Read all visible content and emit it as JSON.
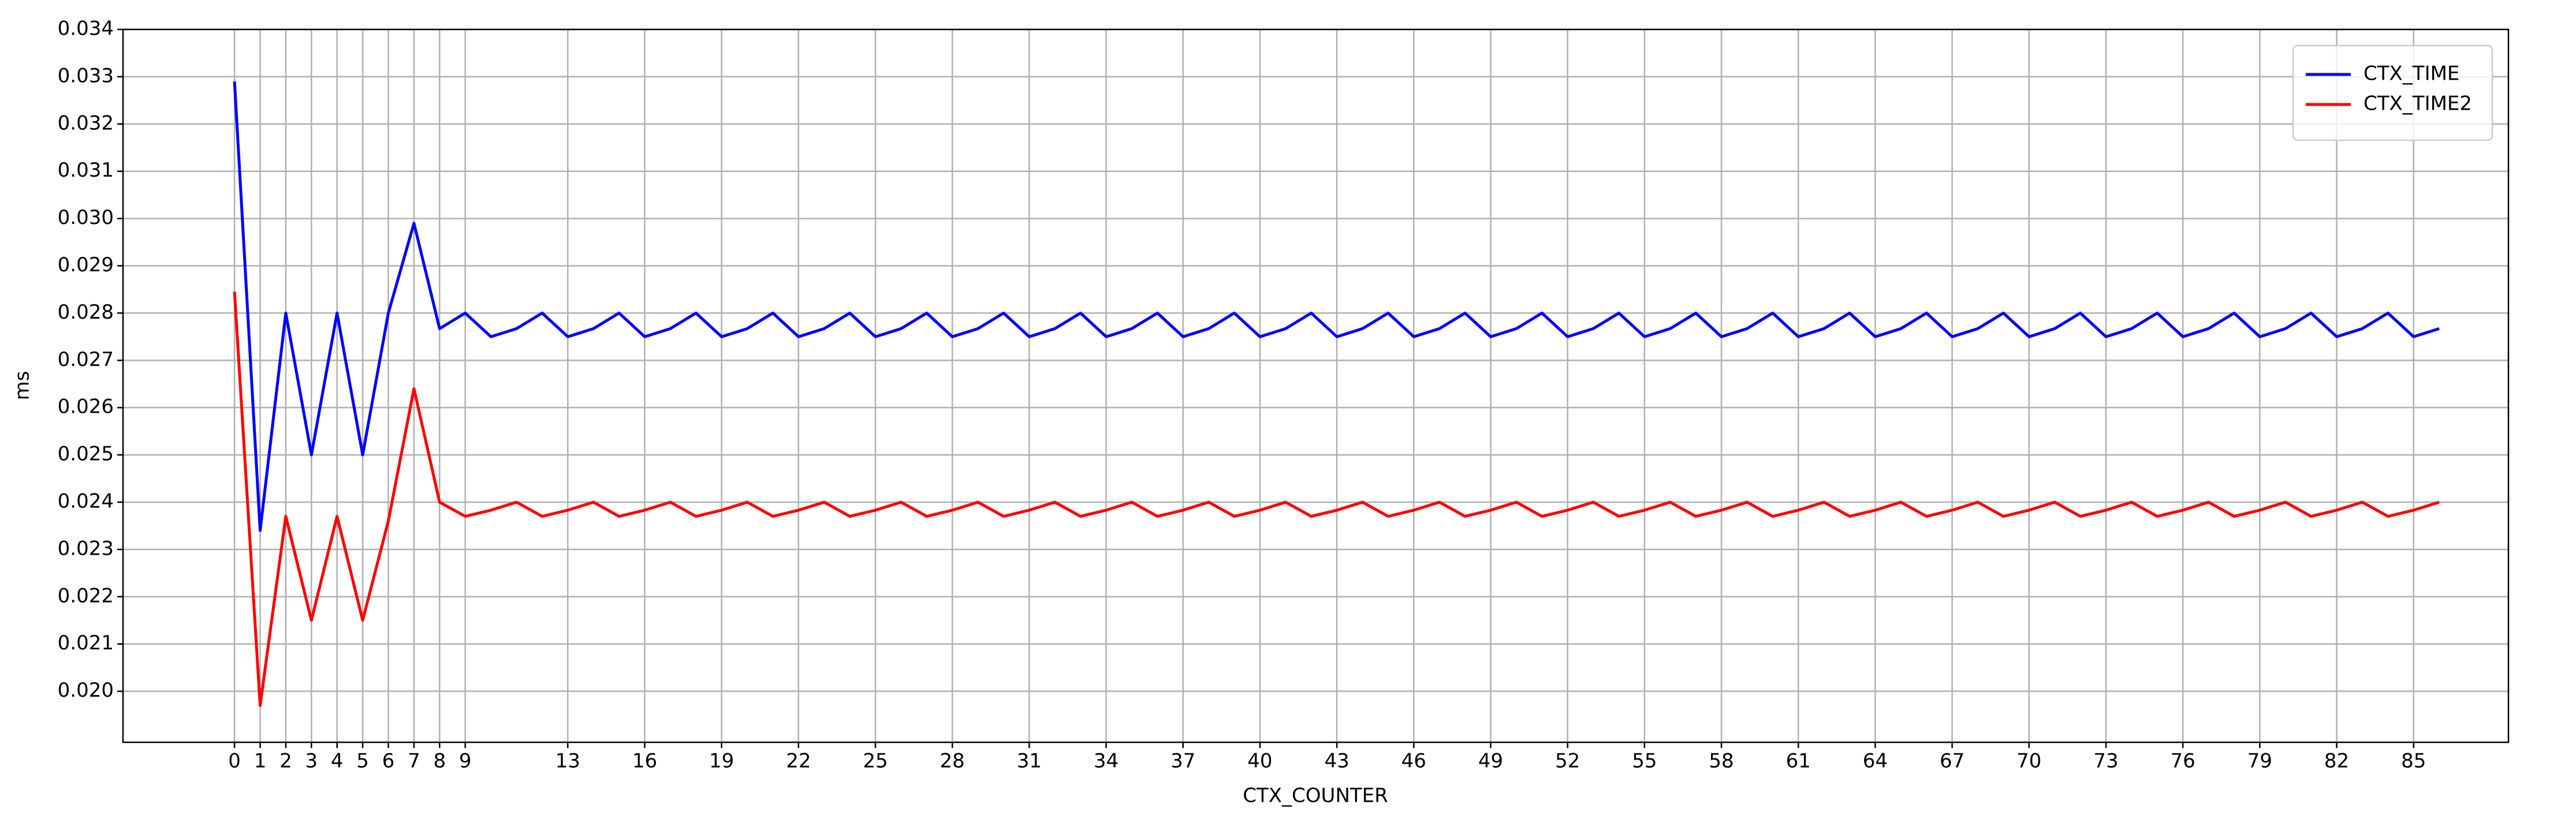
{
  "chart_data": {
    "type": "line",
    "x_label": "CTX_COUNTER",
    "y_label": "ms",
    "x": [
      0,
      1,
      2,
      3,
      4,
      5,
      6,
      7,
      8,
      9,
      10,
      11,
      12,
      13,
      14,
      15,
      16,
      17,
      18,
      19,
      20,
      21,
      22,
      23,
      24,
      25,
      26,
      27,
      28,
      29,
      30,
      31,
      32,
      33,
      34,
      35,
      36,
      37,
      38,
      39,
      40,
      41,
      42,
      43,
      44,
      45,
      46,
      47,
      48,
      49,
      50,
      51,
      52,
      53,
      54,
      55,
      56,
      57,
      58,
      59,
      60,
      61,
      62,
      63,
      64,
      65,
      66,
      67,
      68,
      69,
      70,
      71,
      72,
      73,
      74,
      75,
      76,
      77,
      78,
      79,
      80,
      81,
      82,
      83,
      84,
      85,
      86
    ],
    "series": [
      {
        "name": "CTX_TIME",
        "color": "#0000ff",
        "values": [
          0.0329,
          0.0234,
          0.028,
          0.025,
          0.028,
          0.025,
          0.028,
          0.0299,
          0.02767,
          0.028,
          0.0275,
          0.02767,
          0.028,
          0.0275,
          0.02767,
          0.028,
          0.0275,
          0.02767,
          0.028,
          0.0275,
          0.02767,
          0.028,
          0.0275,
          0.02767,
          0.028,
          0.0275,
          0.02767,
          0.028,
          0.0275,
          0.02767,
          0.028,
          0.0275,
          0.02767,
          0.028,
          0.0275,
          0.02767,
          0.028,
          0.0275,
          0.02767,
          0.028,
          0.0275,
          0.02767,
          0.028,
          0.0275,
          0.02767,
          0.028,
          0.0275,
          0.02767,
          0.028,
          0.0275,
          0.02767,
          0.028,
          0.0275,
          0.02767,
          0.028,
          0.0275,
          0.02767,
          0.028,
          0.0275,
          0.02767,
          0.028,
          0.0275,
          0.02767,
          0.028,
          0.0275,
          0.02767,
          0.028,
          0.0275,
          0.02767,
          0.028,
          0.0275,
          0.02767,
          0.028,
          0.0275,
          0.02767,
          0.028,
          0.0275,
          0.02767,
          0.028,
          0.0275,
          0.02767,
          0.028,
          0.0275,
          0.02767,
          0.028,
          0.0275,
          0.02767
        ]
      },
      {
        "name": "CTX_TIME2",
        "color": "#ff0000",
        "values": [
          0.02845,
          0.0197,
          0.0237,
          0.0215,
          0.0237,
          0.0215,
          0.0236,
          0.0264,
          0.024,
          0.0237,
          0.02383,
          0.024,
          0.0237,
          0.02383,
          0.024,
          0.0237,
          0.02383,
          0.024,
          0.0237,
          0.02383,
          0.024,
          0.0237,
          0.02383,
          0.024,
          0.0237,
          0.02383,
          0.024,
          0.0237,
          0.02383,
          0.024,
          0.0237,
          0.02383,
          0.024,
          0.0237,
          0.02383,
          0.024,
          0.0237,
          0.02383,
          0.024,
          0.0237,
          0.02383,
          0.024,
          0.0237,
          0.02383,
          0.024,
          0.0237,
          0.02383,
          0.024,
          0.0237,
          0.02383,
          0.024,
          0.0237,
          0.02383,
          0.024,
          0.0237,
          0.02383,
          0.024,
          0.0237,
          0.02383,
          0.024,
          0.0237,
          0.02383,
          0.024,
          0.0237,
          0.02383,
          0.024,
          0.0237,
          0.02383,
          0.024,
          0.0237,
          0.02383,
          0.024,
          0.0237,
          0.02383,
          0.024,
          0.0237,
          0.02383,
          0.024,
          0.0237,
          0.02383,
          0.024,
          0.0237,
          0.02383,
          0.024,
          0.0237,
          0.02383,
          0.024
        ]
      }
    ],
    "xlim": [
      -4.35,
      88.7
    ],
    "xticks": [
      0,
      1,
      2,
      3,
      4,
      5,
      6,
      7,
      8,
      9,
      13,
      16,
      19,
      22,
      25,
      28,
      31,
      34,
      37,
      40,
      43,
      46,
      49,
      52,
      55,
      58,
      61,
      64,
      67,
      70,
      73,
      76,
      79,
      82,
      85
    ],
    "ylim": [
      0.01892,
      0.034
    ],
    "yticks": [
      {
        "value": 0.02,
        "label": "0.020"
      },
      0.021,
      0.022,
      0.023,
      0.024,
      0.025,
      0.026,
      0.027,
      0.028,
      0.029,
      {
        "value": 0.03,
        "label": "0.030"
      },
      0.031,
      0.032,
      0.033,
      0.034
    ],
    "grid": true,
    "legend": "upper right"
  }
}
